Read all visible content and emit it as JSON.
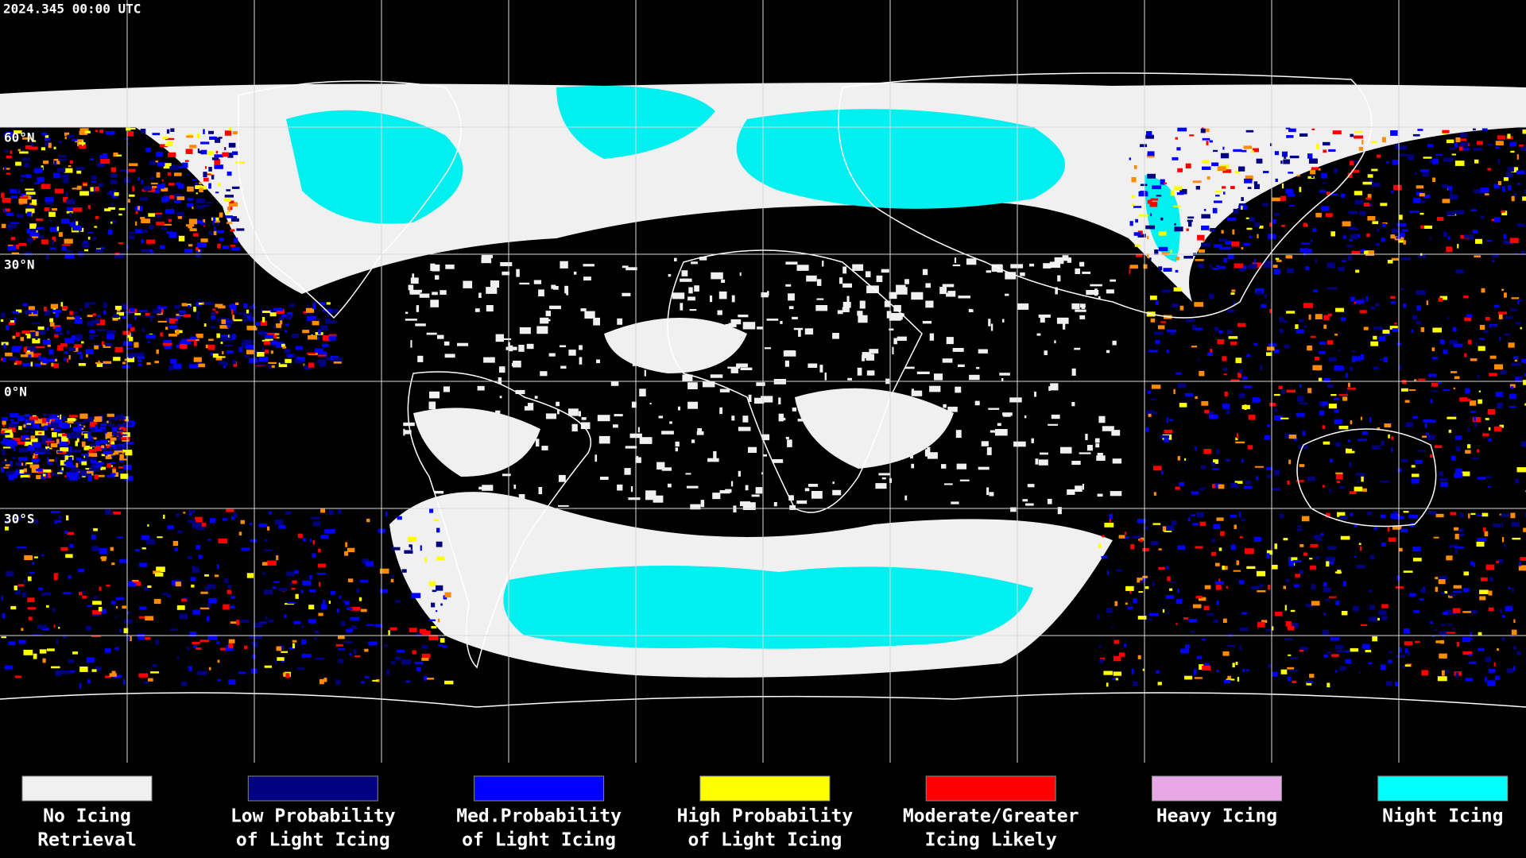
{
  "header": {
    "timestamp": "2024.345 00:00 UTC"
  },
  "map": {
    "latitude_labels": [
      "60°N",
      "30°N",
      "0°N",
      "30°S"
    ]
  },
  "legend": {
    "items": [
      {
        "label_lines": [
          "No Icing",
          "Retrieval"
        ],
        "color": "#f0f0f0"
      },
      {
        "label_lines": [
          "Low Probability",
          "of Light Icing"
        ],
        "color": "#000080"
      },
      {
        "label_lines": [
          "Med.Probability",
          "of Light Icing"
        ],
        "color": "#0000ff"
      },
      {
        "label_lines": [
          "High Probability",
          "of Light Icing"
        ],
        "color": "#ffff00"
      },
      {
        "label_lines": [
          "Moderate/Greater",
          "Icing Likely"
        ],
        "color": "#ff0000"
      },
      {
        "label_lines": [
          "Heavy Icing"
        ],
        "color": "#e8a8e8"
      },
      {
        "label_lines": [
          "Night Icing"
        ],
        "color": "#00ffff"
      }
    ]
  }
}
